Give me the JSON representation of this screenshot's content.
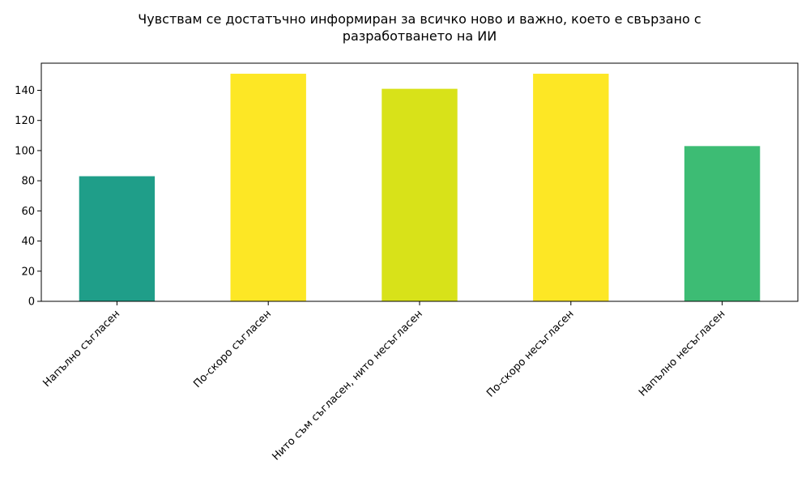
{
  "chart_data": {
    "type": "bar",
    "title_lines": [
      "Чувствам се достатъчно информиран за всичко ново и важно, което е свързано с",
      "разработването на ИИ"
    ],
    "categories": [
      "Напълно съгласен",
      "По-скоро съгласен",
      "Нито съм съгласен, нито несъгласен",
      "По-скоро несъгласен",
      "Напълно несъгласен"
    ],
    "values": [
      83,
      151,
      141,
      151,
      103
    ],
    "colors": [
      "#1f9e89",
      "#fde725",
      "#d8e219",
      "#fde725",
      "#3dbc74"
    ],
    "ylim": [
      0,
      158
    ],
    "yticks": [
      0,
      20,
      40,
      60,
      80,
      100,
      120,
      140
    ],
    "grid": false,
    "legend": "none"
  }
}
